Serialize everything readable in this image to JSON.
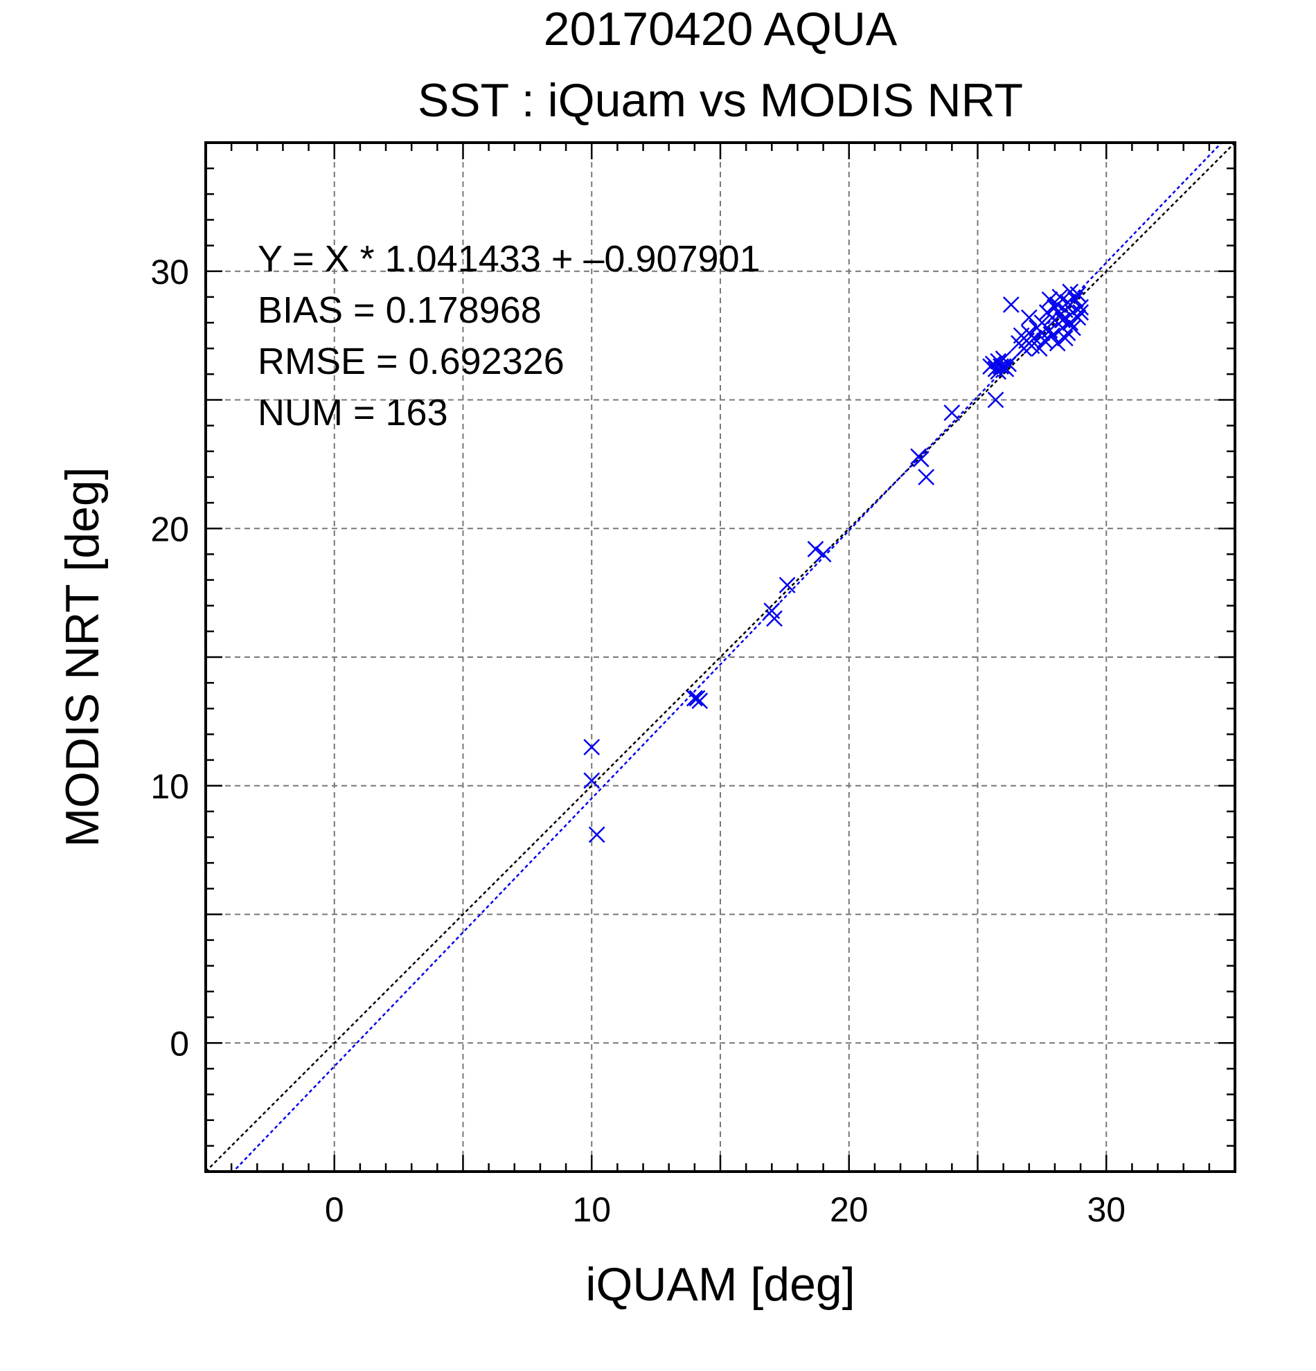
{
  "chart_data": {
    "type": "scatter",
    "title": "20170420 AQUA",
    "subtitle": "SST : iQuam vs MODIS NRT",
    "xlabel": "iQUAM [deg]",
    "ylabel": "MODIS NRT [deg]",
    "xlim": [
      -5,
      35
    ],
    "ylim": [
      -5,
      35
    ],
    "x_ticks": [
      0,
      10,
      20,
      30
    ],
    "y_ticks": [
      0,
      10,
      20,
      30
    ],
    "grid": true,
    "stats": {
      "equation": "Y = X * 1.041433 + –0.907901",
      "bias": "BIAS = 0.178968",
      "rmse": "RMSE = 0.692326",
      "num": "NUM = 163"
    },
    "lines": [
      {
        "kind": "1:1",
        "slope": 1.0,
        "intercept": 0.0,
        "color": "#000000"
      },
      {
        "kind": "fit",
        "slope": 1.041433,
        "intercept": -0.907901,
        "color": "#0000ee"
      }
    ],
    "marker_color": "#0000ee",
    "series": [
      {
        "marker": "x",
        "points": [
          [
            10.0,
            11.5
          ],
          [
            10.0,
            10.2
          ],
          [
            10.2,
            8.1
          ],
          [
            14.0,
            13.4
          ],
          [
            14.1,
            13.4
          ],
          [
            14.2,
            13.3
          ],
          [
            17.0,
            16.8
          ],
          [
            17.1,
            16.5
          ],
          [
            17.6,
            17.8
          ],
          [
            18.7,
            19.2
          ],
          [
            19.0,
            19.0
          ],
          [
            22.7,
            22.8
          ],
          [
            22.8,
            22.7
          ],
          [
            23.0,
            22.0
          ],
          [
            24.0,
            24.5
          ],
          [
            25.7,
            25.0
          ],
          [
            25.5,
            26.3
          ],
          [
            25.6,
            26.4
          ],
          [
            25.7,
            26.2
          ],
          [
            25.8,
            26.5
          ],
          [
            25.9,
            26.3
          ],
          [
            26.0,
            26.6
          ],
          [
            26.1,
            26.2
          ],
          [
            26.2,
            26.4
          ],
          [
            25.8,
            26.1
          ],
          [
            26.0,
            26.3
          ],
          [
            26.3,
            28.7
          ],
          [
            26.6,
            27.2
          ],
          [
            26.7,
            27.5
          ],
          [
            26.8,
            27.0
          ],
          [
            26.9,
            27.3
          ],
          [
            27.0,
            27.6
          ],
          [
            27.0,
            28.2
          ],
          [
            27.1,
            27.1
          ],
          [
            27.2,
            27.4
          ],
          [
            27.3,
            27.8
          ],
          [
            27.4,
            27.0
          ],
          [
            27.5,
            27.6
          ],
          [
            27.5,
            28.0
          ],
          [
            27.6,
            27.3
          ],
          [
            27.7,
            28.4
          ],
          [
            27.8,
            27.7
          ],
          [
            27.8,
            28.9
          ],
          [
            27.9,
            27.5
          ],
          [
            28.0,
            28.1
          ],
          [
            28.0,
            28.6
          ],
          [
            28.1,
            27.2
          ],
          [
            28.2,
            28.3
          ],
          [
            28.2,
            29.0
          ],
          [
            28.3,
            27.8
          ],
          [
            28.4,
            28.5
          ],
          [
            28.4,
            27.4
          ],
          [
            28.5,
            28.8
          ],
          [
            28.6,
            28.0
          ],
          [
            28.6,
            29.2
          ],
          [
            28.7,
            28.4
          ],
          [
            28.8,
            28.9
          ],
          [
            28.9,
            28.2
          ],
          [
            28.9,
            29.1
          ],
          [
            29.0,
            28.6
          ],
          [
            28.3,
            28.1
          ],
          [
            28.5,
            27.6
          ],
          [
            28.7,
            27.8
          ],
          [
            29.0,
            28.4
          ],
          [
            28.1,
            28.7
          ],
          [
            27.9,
            28.2
          ]
        ]
      }
    ]
  }
}
